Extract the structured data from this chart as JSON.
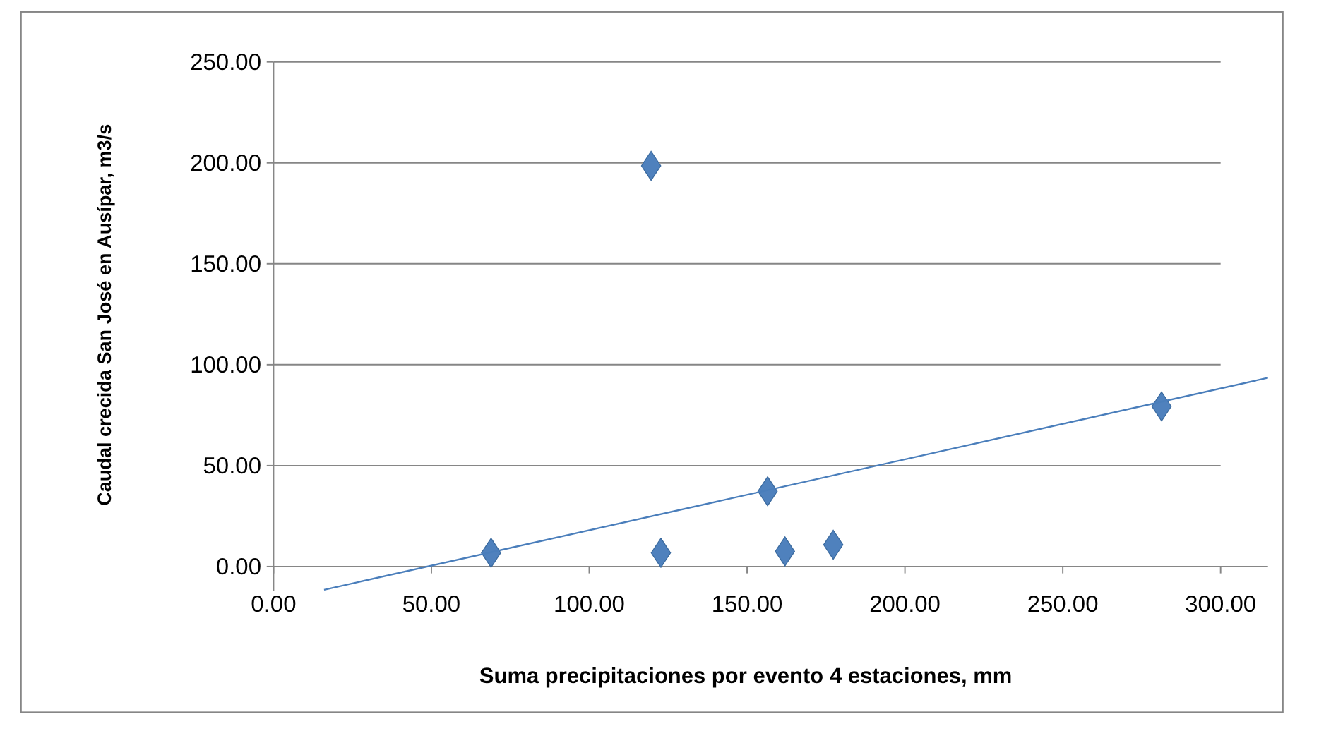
{
  "chart_data": {
    "type": "scatter",
    "xlabel": "Suma precipitaciones  por evento 4 estaciones, mm",
    "ylabel": "Caudal crecida San José en Ausípar, m3/s",
    "xlim": [
      0,
      315
    ],
    "ylim": [
      -12,
      250
    ],
    "xticks": [
      {
        "value": 0,
        "label": "0.00"
      },
      {
        "value": 50,
        "label": "50.00"
      },
      {
        "value": 100,
        "label": "100.00"
      },
      {
        "value": 150,
        "label": "150.00"
      },
      {
        "value": 200,
        "label": "200.00"
      },
      {
        "value": 250,
        "label": "250.00"
      },
      {
        "value": 300,
        "label": "300.00"
      }
    ],
    "yticks": [
      {
        "value": 0,
        "label": "0.00"
      },
      {
        "value": 50,
        "label": "50.00"
      },
      {
        "value": 100,
        "label": "100.00"
      },
      {
        "value": 150,
        "label": "150.00"
      },
      {
        "value": 200,
        "label": "200.00"
      },
      {
        "value": 250,
        "label": "250.00"
      }
    ],
    "grid": "y",
    "marker": "diamond",
    "series": [
      {
        "type": "scatter",
        "color": "#4f81bd",
        "x": [
          68.9,
          119.6,
          122.7,
          156.5,
          162,
          177.3,
          281.3
        ],
        "values": [
          6.8,
          198.5,
          6.8,
          37.3,
          7.5,
          10.8,
          79.3
        ]
      },
      {
        "type": "line",
        "color": "#4a7ebb",
        "line_style": "solid",
        "marker": "none",
        "x": [
          16,
          315
        ],
        "values": [
          -11.5,
          93.5
        ]
      }
    ]
  }
}
